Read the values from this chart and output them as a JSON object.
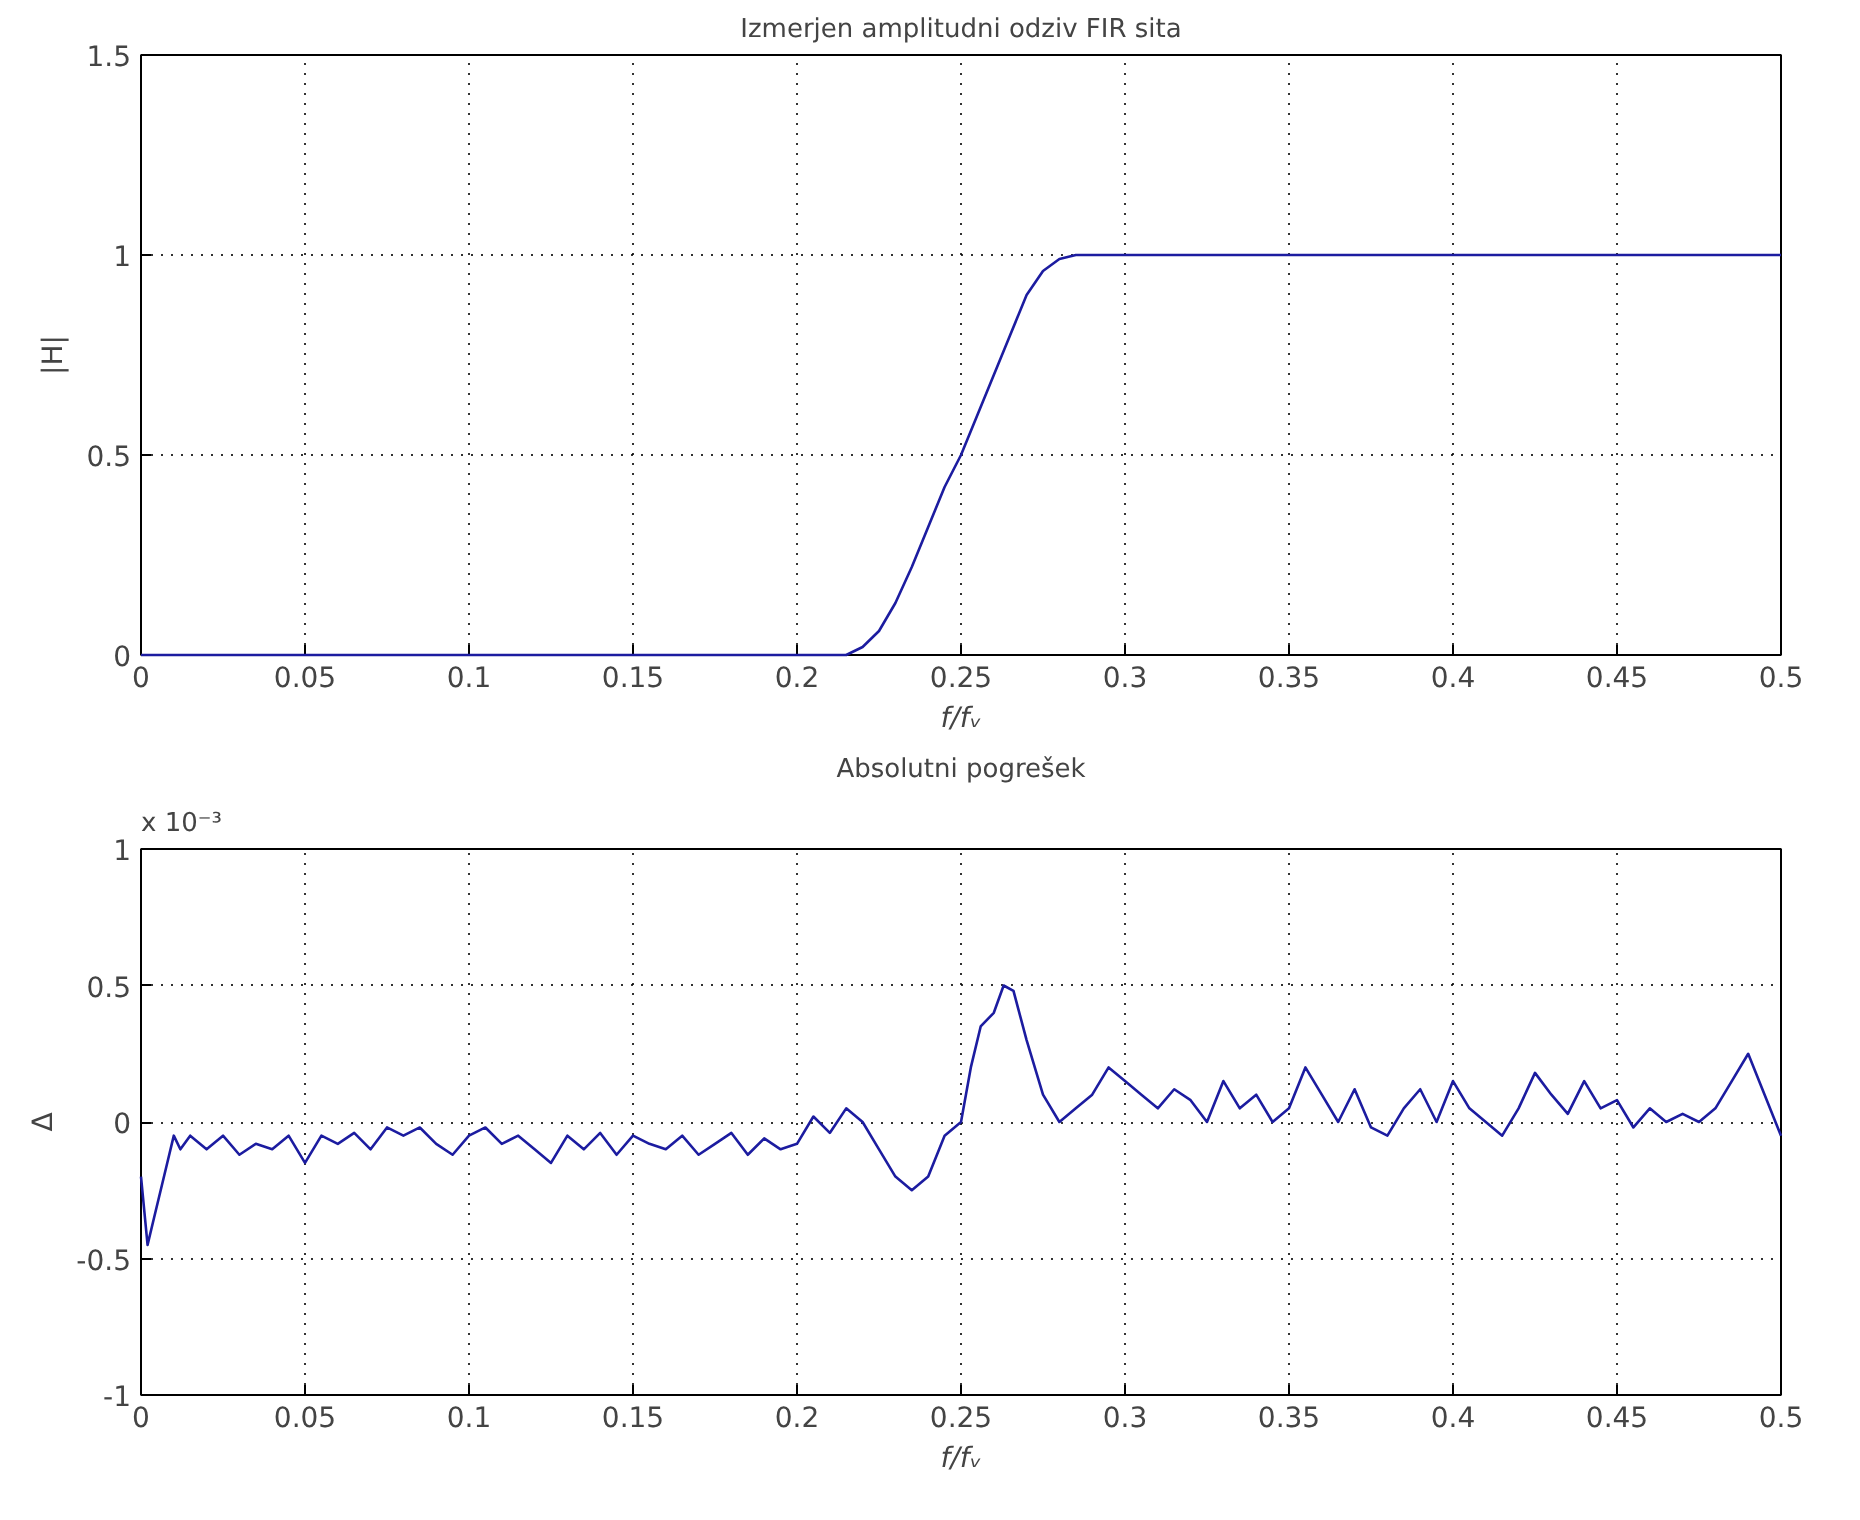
{
  "chart_data": [
    {
      "type": "line",
      "title": "Izmerjen amplitudni odziv FIR sita",
      "xlabel": "f/fᵥ",
      "ylabel": "|H|",
      "x": [
        0,
        0.05,
        0.1,
        0.15,
        0.2,
        0.215,
        0.22,
        0.225,
        0.23,
        0.235,
        0.24,
        0.245,
        0.25,
        0.255,
        0.26,
        0.265,
        0.27,
        0.275,
        0.28,
        0.285,
        0.3,
        0.35,
        0.4,
        0.45,
        0.5
      ],
      "series": [
        {
          "color": "#1c1ca0",
          "values": [
            0,
            0,
            0,
            0,
            0,
            0,
            0.02,
            0.06,
            0.13,
            0.22,
            0.32,
            0.42,
            0.5,
            0.6,
            0.7,
            0.8,
            0.9,
            0.96,
            0.99,
            1.0,
            1.0,
            1.0,
            1.0,
            1.0,
            1.0
          ]
        }
      ],
      "xlim": [
        0,
        0.5
      ],
      "ylim": [
        0,
        1.5
      ],
      "xticks": [
        0,
        0.05,
        0.1,
        0.15,
        0.2,
        0.25,
        0.3,
        0.35,
        0.4,
        0.45,
        0.5
      ],
      "yticks": [
        0,
        0.5,
        1,
        1.5
      ],
      "grid": true,
      "line_style": "solid"
    },
    {
      "type": "line",
      "title": "Absolutni pogrešek",
      "xlabel": "f/fᵥ",
      "ylabel": "Δ",
      "annotations": [
        "x 10⁻³"
      ],
      "x": [
        0,
        0.002,
        0.004,
        0.006,
        0.008,
        0.01,
        0.012,
        0.015,
        0.02,
        0.025,
        0.03,
        0.035,
        0.04,
        0.045,
        0.05,
        0.055,
        0.06,
        0.065,
        0.07,
        0.075,
        0.08,
        0.085,
        0.09,
        0.095,
        0.1,
        0.105,
        0.11,
        0.115,
        0.12,
        0.125,
        0.13,
        0.135,
        0.14,
        0.145,
        0.15,
        0.155,
        0.16,
        0.165,
        0.17,
        0.175,
        0.18,
        0.185,
        0.19,
        0.195,
        0.2,
        0.205,
        0.21,
        0.215,
        0.22,
        0.225,
        0.23,
        0.235,
        0.24,
        0.245,
        0.25,
        0.253,
        0.256,
        0.26,
        0.263,
        0.266,
        0.27,
        0.275,
        0.28,
        0.285,
        0.29,
        0.295,
        0.3,
        0.305,
        0.31,
        0.315,
        0.32,
        0.325,
        0.33,
        0.335,
        0.34,
        0.345,
        0.35,
        0.355,
        0.36,
        0.365,
        0.37,
        0.375,
        0.38,
        0.385,
        0.39,
        0.395,
        0.4,
        0.405,
        0.41,
        0.415,
        0.42,
        0.425,
        0.43,
        0.435,
        0.44,
        0.445,
        0.45,
        0.455,
        0.46,
        0.465,
        0.47,
        0.475,
        0.48,
        0.485,
        0.49,
        0.495,
        0.5
      ],
      "series": [
        {
          "color": "#1c1ca0",
          "values": [
            -0.2,
            -0.45,
            -0.35,
            -0.25,
            -0.15,
            -0.05,
            -0.1,
            -0.05,
            -0.1,
            -0.05,
            -0.12,
            -0.08,
            -0.1,
            -0.05,
            -0.15,
            -0.05,
            -0.08,
            -0.04,
            -0.1,
            -0.02,
            -0.05,
            -0.02,
            -0.08,
            -0.12,
            -0.05,
            -0.02,
            -0.08,
            -0.05,
            -0.1,
            -0.15,
            -0.05,
            -0.1,
            -0.04,
            -0.12,
            -0.05,
            -0.08,
            -0.1,
            -0.05,
            -0.12,
            -0.08,
            -0.04,
            -0.12,
            -0.06,
            -0.1,
            -0.08,
            0.02,
            -0.04,
            0.05,
            0.0,
            -0.1,
            -0.2,
            -0.25,
            -0.2,
            -0.05,
            0.0,
            0.2,
            0.35,
            0.4,
            0.5,
            0.48,
            0.3,
            0.1,
            0.0,
            0.05,
            0.1,
            0.2,
            0.15,
            0.1,
            0.05,
            0.12,
            0.08,
            0.0,
            0.15,
            0.05,
            0.1,
            0.0,
            0.05,
            0.2,
            0.1,
            0.0,
            0.12,
            -0.02,
            -0.05,
            0.05,
            0.12,
            0.0,
            0.15,
            0.05,
            0.0,
            -0.05,
            0.05,
            0.18,
            0.1,
            0.03,
            0.15,
            0.05,
            0.08,
            -0.02,
            0.05,
            0.0,
            0.03,
            0.0,
            0.05,
            0.15,
            0.25,
            0.1,
            -0.05
          ]
        }
      ],
      "xlim": [
        0,
        0.5
      ],
      "ylim": [
        -1,
        1
      ],
      "xticks": [
        0,
        0.05,
        0.1,
        0.15,
        0.2,
        0.25,
        0.3,
        0.35,
        0.4,
        0.45,
        0.5
      ],
      "yticks": [
        -1,
        -0.5,
        0,
        0.5,
        1
      ],
      "grid": true,
      "line_style": "solid"
    }
  ]
}
